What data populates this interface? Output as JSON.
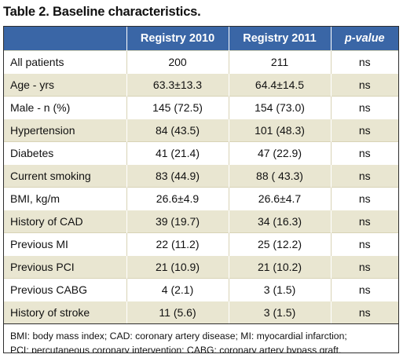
{
  "caption": "Table 2. Baseline characteristics.",
  "table": {
    "headers": [
      "",
      "Registry 2010",
      "Registry 2011",
      "p-value"
    ],
    "rows": [
      [
        "All patients",
        "200",
        "211",
        "ns"
      ],
      [
        "Age - yrs",
        "63.3±13.3",
        "64.4±14.5",
        "ns"
      ],
      [
        "Male - n (%)",
        "145 (72.5)",
        "154 (73.0)",
        "ns"
      ],
      [
        "Hypertension",
        "84 (43.5)",
        "101 (48.3)",
        "ns"
      ],
      [
        "Diabetes",
        "41 (21.4)",
        "47 (22.9)",
        "ns"
      ],
      [
        "Current smoking",
        "83 (44.9)",
        "88 ( 43.3)",
        "ns"
      ],
      [
        "BMI, kg/m",
        "26.6±4.9",
        "26.6±4.7",
        "ns"
      ],
      [
        "History of CAD",
        "39 (19.7)",
        "34 (16.3)",
        "ns"
      ],
      [
        "Previous MI",
        "22 (11.2)",
        "25 (12.2)",
        "ns"
      ],
      [
        "Previous PCI",
        "21 (10.9)",
        "21 (10.2)",
        "ns"
      ],
      [
        "Previous CABG",
        "4 (2.1)",
        "3 (1.5)",
        "ns"
      ],
      [
        "History of stroke",
        "11 (5.6)",
        "3 (1.5)",
        "ns"
      ]
    ]
  },
  "footnote": {
    "line1": "BMI: body mass index; CAD: coronary artery disease; MI: myocardial infarction;",
    "line2": "PCI: percutaneous coronary intervention; CABG: coronary artery bypass graft."
  },
  "colors": {
    "header_bg": "#3a66a6",
    "header_text": "#ffffff",
    "shaded_row": "#e9e6d1",
    "plain_row": "#ffffff"
  }
}
